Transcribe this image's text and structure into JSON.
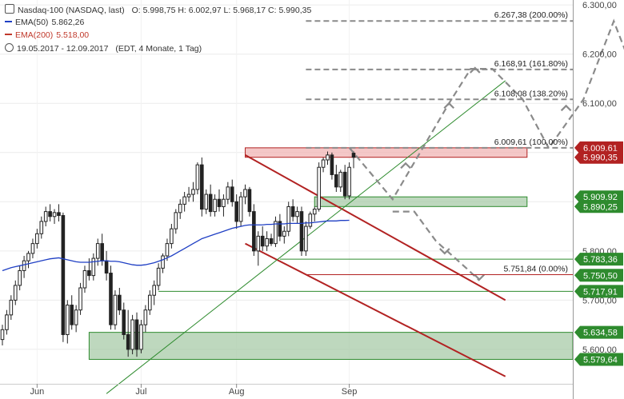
{
  "header": {
    "symbol_line": "Nasdaq-100 (NASDAQ, last)",
    "ohlc": "O: 5.998,75  H: 6.002,97  L: 5.968,17  C: 5.990,35",
    "ema50_label": "EMA(50)",
    "ema50_value": "5.862,26",
    "ema200_label": "EMA(200)",
    "ema200_value": "5.518,00",
    "period": "19.05.2017 - 12.09.2017",
    "period_note": "(EDT, 4 Monate, 1 Tag)"
  },
  "colors": {
    "candle": "#222222",
    "ema50": "#1f3fc4",
    "ema200": "#c0392b",
    "red_channel": "#b22222",
    "green_line": "#2e8b2e",
    "dash_gray": "#8a8a8a",
    "box_green": "#a8cba8",
    "box_red": "#f0b4b4",
    "label_green": "#2e8b2e",
    "label_red": "#b22222"
  },
  "chart_data": {
    "type": "candlestick",
    "x_labels": [
      "Jun",
      "Jul",
      "Aug",
      "Sep"
    ],
    "y_ticks": [
      "5.600,00",
      "5.700,00",
      "5.800,00",
      "5.900,00",
      "6.000,00",
      "6.100,00",
      "6.200,00",
      "6.300,00"
    ],
    "y_tick_values": [
      5600,
      5700,
      5800,
      5900,
      6000,
      6100,
      6200,
      6300
    ],
    "ylim": [
      5530,
      6310
    ],
    "candles": [
      {
        "o": 5620,
        "h": 5650,
        "l": 5608,
        "c": 5640
      },
      {
        "o": 5640,
        "h": 5680,
        "l": 5630,
        "c": 5670
      },
      {
        "o": 5670,
        "h": 5710,
        "l": 5660,
        "c": 5700
      },
      {
        "o": 5700,
        "h": 5740,
        "l": 5690,
        "c": 5730
      },
      {
        "o": 5730,
        "h": 5770,
        "l": 5720,
        "c": 5760
      },
      {
        "o": 5760,
        "h": 5790,
        "l": 5745,
        "c": 5780
      },
      {
        "o": 5780,
        "h": 5800,
        "l": 5765,
        "c": 5795
      },
      {
        "o": 5795,
        "h": 5825,
        "l": 5785,
        "c": 5815
      },
      {
        "o": 5815,
        "h": 5845,
        "l": 5805,
        "c": 5835
      },
      {
        "o": 5835,
        "h": 5870,
        "l": 5825,
        "c": 5860
      },
      {
        "o": 5860,
        "h": 5890,
        "l": 5850,
        "c": 5880
      },
      {
        "o": 5880,
        "h": 5895,
        "l": 5860,
        "c": 5870
      },
      {
        "o": 5870,
        "h": 5885,
        "l": 5855,
        "c": 5878
      },
      {
        "o": 5878,
        "h": 5895,
        "l": 5860,
        "c": 5872
      },
      {
        "o": 5872,
        "h": 5878,
        "l": 5615,
        "c": 5630
      },
      {
        "o": 5630,
        "h": 5700,
        "l": 5612,
        "c": 5690
      },
      {
        "o": 5690,
        "h": 5710,
        "l": 5640,
        "c": 5650
      },
      {
        "o": 5650,
        "h": 5690,
        "l": 5635,
        "c": 5680
      },
      {
        "o": 5680,
        "h": 5735,
        "l": 5670,
        "c": 5725
      },
      {
        "o": 5725,
        "h": 5770,
        "l": 5715,
        "c": 5760
      },
      {
        "o": 5760,
        "h": 5785,
        "l": 5740,
        "c": 5750
      },
      {
        "o": 5750,
        "h": 5795,
        "l": 5740,
        "c": 5785
      },
      {
        "o": 5785,
        "h": 5825,
        "l": 5770,
        "c": 5815
      },
      {
        "o": 5815,
        "h": 5835,
        "l": 5770,
        "c": 5780
      },
      {
        "o": 5780,
        "h": 5800,
        "l": 5740,
        "c": 5755
      },
      {
        "o": 5755,
        "h": 5770,
        "l": 5640,
        "c": 5650
      },
      {
        "o": 5650,
        "h": 5720,
        "l": 5640,
        "c": 5710
      },
      {
        "o": 5710,
        "h": 5725,
        "l": 5670,
        "c": 5680
      },
      {
        "o": 5680,
        "h": 5695,
        "l": 5620,
        "c": 5630
      },
      {
        "o": 5630,
        "h": 5680,
        "l": 5585,
        "c": 5600
      },
      {
        "o": 5600,
        "h": 5670,
        "l": 5590,
        "c": 5660
      },
      {
        "o": 5660,
        "h": 5675,
        "l": 5585,
        "c": 5600
      },
      {
        "o": 5600,
        "h": 5660,
        "l": 5592,
        "c": 5650
      },
      {
        "o": 5650,
        "h": 5690,
        "l": 5635,
        "c": 5680
      },
      {
        "o": 5680,
        "h": 5720,
        "l": 5670,
        "c": 5710
      },
      {
        "o": 5710,
        "h": 5740,
        "l": 5690,
        "c": 5730
      },
      {
        "o": 5730,
        "h": 5775,
        "l": 5720,
        "c": 5765
      },
      {
        "o": 5765,
        "h": 5795,
        "l": 5755,
        "c": 5790
      },
      {
        "o": 5790,
        "h": 5825,
        "l": 5780,
        "c": 5815
      },
      {
        "o": 5815,
        "h": 5855,
        "l": 5805,
        "c": 5845
      },
      {
        "o": 5845,
        "h": 5885,
        "l": 5835,
        "c": 5878
      },
      {
        "o": 5878,
        "h": 5905,
        "l": 5865,
        "c": 5895
      },
      {
        "o": 5895,
        "h": 5920,
        "l": 5880,
        "c": 5910
      },
      {
        "o": 5910,
        "h": 5930,
        "l": 5900,
        "c": 5915
      },
      {
        "o": 5915,
        "h": 5940,
        "l": 5900,
        "c": 5925
      },
      {
        "o": 5925,
        "h": 5980,
        "l": 5915,
        "c": 5975
      },
      {
        "o": 5975,
        "h": 5990,
        "l": 5870,
        "c": 5885
      },
      {
        "o": 5885,
        "h": 5925,
        "l": 5875,
        "c": 5915
      },
      {
        "o": 5915,
        "h": 5935,
        "l": 5870,
        "c": 5880
      },
      {
        "o": 5880,
        "h": 5915,
        "l": 5870,
        "c": 5905
      },
      {
        "o": 5905,
        "h": 5925,
        "l": 5880,
        "c": 5890
      },
      {
        "o": 5890,
        "h": 5915,
        "l": 5870,
        "c": 5905
      },
      {
        "o": 5905,
        "h": 5940,
        "l": 5895,
        "c": 5930
      },
      {
        "o": 5930,
        "h": 5945,
        "l": 5890,
        "c": 5900
      },
      {
        "o": 5900,
        "h": 5915,
        "l": 5845,
        "c": 5860
      },
      {
        "o": 5860,
        "h": 5920,
        "l": 5850,
        "c": 5910
      },
      {
        "o": 5910,
        "h": 5935,
        "l": 5895,
        "c": 5925
      },
      {
        "o": 5925,
        "h": 5930,
        "l": 5870,
        "c": 5880
      },
      {
        "o": 5880,
        "h": 5895,
        "l": 5790,
        "c": 5800
      },
      {
        "o": 5800,
        "h": 5840,
        "l": 5770,
        "c": 5830
      },
      {
        "o": 5830,
        "h": 5850,
        "l": 5800,
        "c": 5810
      },
      {
        "o": 5810,
        "h": 5840,
        "l": 5800,
        "c": 5825
      },
      {
        "o": 5825,
        "h": 5835,
        "l": 5810,
        "c": 5815
      },
      {
        "o": 5815,
        "h": 5870,
        "l": 5808,
        "c": 5860
      },
      {
        "o": 5860,
        "h": 5875,
        "l": 5820,
        "c": 5830
      },
      {
        "o": 5830,
        "h": 5850,
        "l": 5815,
        "c": 5840
      },
      {
        "o": 5840,
        "h": 5900,
        "l": 5830,
        "c": 5890
      },
      {
        "o": 5890,
        "h": 5905,
        "l": 5860,
        "c": 5870
      },
      {
        "o": 5870,
        "h": 5890,
        "l": 5855,
        "c": 5880
      },
      {
        "o": 5880,
        "h": 5890,
        "l": 5790,
        "c": 5800
      },
      {
        "o": 5800,
        "h": 5860,
        "l": 5790,
        "c": 5850
      },
      {
        "o": 5850,
        "h": 5880,
        "l": 5845,
        "c": 5875
      },
      {
        "o": 5875,
        "h": 5890,
        "l": 5860,
        "c": 5885
      },
      {
        "o": 5885,
        "h": 5980,
        "l": 5880,
        "c": 5970
      },
      {
        "o": 5970,
        "h": 5990,
        "l": 5960,
        "c": 5985
      },
      {
        "o": 5985,
        "h": 6002,
        "l": 5975,
        "c": 5995
      },
      {
        "o": 5995,
        "h": 6000,
        "l": 5945,
        "c": 5955
      },
      {
        "o": 5955,
        "h": 5975,
        "l": 5920,
        "c": 5930
      },
      {
        "o": 5930,
        "h": 5965,
        "l": 5920,
        "c": 5960
      },
      {
        "o": 5960,
        "h": 5975,
        "l": 5905,
        "c": 5912
      },
      {
        "o": 5912,
        "h": 5980,
        "l": 5905,
        "c": 5970
      },
      {
        "o": 5998.75,
        "h": 6002.97,
        "l": 5968.17,
        "c": 5990.35
      }
    ],
    "ema50": [
      5760,
      5763,
      5766,
      5768,
      5770,
      5772,
      5774,
      5776,
      5778,
      5780,
      5782,
      5784,
      5785,
      5786,
      5784,
      5782,
      5780,
      5778,
      5777,
      5777,
      5777,
      5778,
      5779,
      5780,
      5780,
      5779,
      5779,
      5778,
      5776,
      5774,
      5772,
      5771,
      5771,
      5772,
      5774,
      5776,
      5779,
      5782,
      5786,
      5790,
      5795,
      5800,
      5805,
      5810,
      5815,
      5820,
      5825,
      5828,
      5831,
      5834,
      5837,
      5840,
      5843,
      5846,
      5848,
      5850,
      5852,
      5853,
      5853,
      5853,
      5853,
      5854,
      5854,
      5855,
      5855,
      5855,
      5856,
      5856,
      5856,
      5856,
      5857,
      5857,
      5858,
      5859,
      5860,
      5861,
      5861,
      5861,
      5862,
      5862,
      5862.26
    ],
    "ema50_start_index": 0,
    "ema50_note": "",
    "levels": [
      {
        "label": "6.267,38 (200.00%)",
        "value": 6267.38,
        "style": "dashed"
      },
      {
        "label": "6.168,91 (161.80%)",
        "value": 6168.91,
        "style": "dashed"
      },
      {
        "label": "6.108,08 (138.20%)",
        "value": 6108.08,
        "style": "dashed"
      },
      {
        "label": "6.009,61 (100.00%)",
        "value": 6009.61,
        "style": "dashed"
      },
      {
        "label": "5.751,84 (0.00%)",
        "value": 5751.84,
        "style": "solid"
      }
    ],
    "price_labels": [
      {
        "text": "6.009,61",
        "value": 6009.61,
        "color": "red"
      },
      {
        "text": "5.990,35",
        "value": 5990.35,
        "color": "red"
      },
      {
        "text": "5.909,92",
        "value": 5909.92,
        "color": "green"
      },
      {
        "text": "5.890,25",
        "value": 5890.25,
        "color": "green"
      },
      {
        "text": "5.783,36",
        "value": 5783.36,
        "color": "green"
      },
      {
        "text": "5.750,50",
        "value": 5750.5,
        "color": "green"
      },
      {
        "text": "5.717,91",
        "value": 5717.91,
        "color": "green"
      },
      {
        "text": "5.634,58",
        "value": 5634.58,
        "color": "green"
      },
      {
        "text": "5.579,64",
        "value": 5579.64,
        "color": "green"
      }
    ],
    "zones": [
      {
        "name": "resistance",
        "from": 5990.35,
        "to": 6009.61,
        "color": "red",
        "start_index": 56
      },
      {
        "name": "support-upper",
        "from": 5890.25,
        "to": 5909.92,
        "color": "green",
        "start_index": 72
      },
      {
        "name": "support-lower",
        "from": 5579.64,
        "to": 5634.58,
        "color": "green",
        "start_index": 20
      }
    ],
    "support_lines": [
      {
        "value": 5783.36,
        "start_index": 64
      },
      {
        "value": 5717.91,
        "start_index": 36
      }
    ],
    "red_channel": {
      "upper": [
        {
          "i": 56,
          "v": 5995
        },
        {
          "i": 116,
          "v": 5700
        }
      ],
      "lower": [
        {
          "i": 56,
          "v": 5815
        },
        {
          "i": 116,
          "v": 5545
        }
      ]
    },
    "green_trend": [
      {
        "i": 24,
        "v": 5510
      },
      {
        "i": 116,
        "v": 6146
      }
    ],
    "scenario_up": [
      {
        "i": 80,
        "v": 6010
      },
      {
        "i": 90,
        "v": 5905
      },
      {
        "i": 96,
        "v": 5995
      },
      {
        "i": 103,
        "v": 6100
      },
      {
        "i": 108,
        "v": 6170
      },
      {
        "i": 113,
        "v": 6170
      },
      {
        "i": 120,
        "v": 6108
      },
      {
        "i": 126,
        "v": 6009
      },
      {
        "i": 134,
        "v": 6108
      },
      {
        "i": 141,
        "v": 6267
      },
      {
        "i": 148,
        "v": 6108
      }
    ],
    "scenario_down": [
      {
        "i": 90,
        "v": 5880
      },
      {
        "i": 95,
        "v": 5880
      },
      {
        "i": 100,
        "v": 5820
      },
      {
        "i": 107,
        "v": 5765
      },
      {
        "i": 110,
        "v": 5740
      }
    ]
  }
}
